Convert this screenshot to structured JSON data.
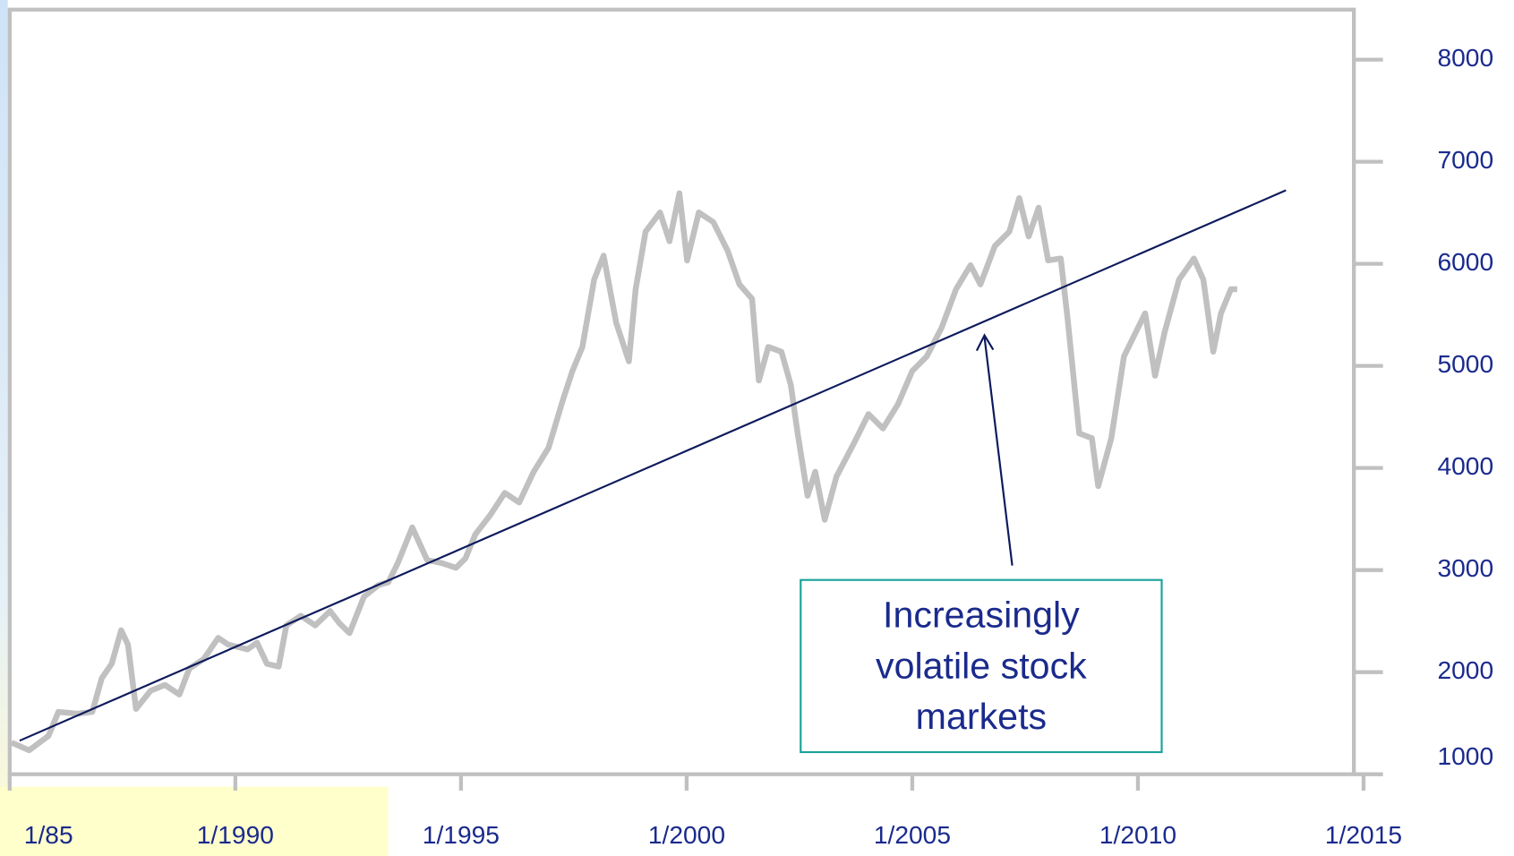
{
  "chart_data": {
    "type": "line",
    "x": [
      1985.04,
      1985.43,
      1985.86,
      1986.08,
      1986.5,
      1986.83,
      1987.04,
      1987.26,
      1987.47,
      1987.62,
      1987.8,
      1988.12,
      1988.44,
      1988.76,
      1988.98,
      1989.3,
      1989.62,
      1989.84,
      1990.27,
      1990.48,
      1990.7,
      1990.96,
      1991.13,
      1991.45,
      1991.77,
      1992.1,
      1992.31,
      1992.53,
      1992.85,
      1993.17,
      1993.39,
      1993.6,
      1993.92,
      1994.25,
      1994.57,
      1994.89,
      1995.1,
      1995.32,
      1995.65,
      1995.97,
      1996.29,
      1996.61,
      1996.94,
      1997.26,
      1997.47,
      1997.69,
      1997.95,
      1998.16,
      1998.44,
      1998.72,
      1998.87,
      1999.09,
      1999.41,
      1999.62,
      1999.84,
      2000.01,
      2000.27,
      2000.59,
      2000.91,
      2001.17,
      2001.45,
      2001.6,
      2001.81,
      2002.1,
      2002.31,
      2002.46,
      2002.68,
      2002.85,
      2003.06,
      2003.32,
      2003.71,
      2004.03,
      2004.35,
      2004.68,
      2005.0,
      2005.32,
      2005.65,
      2005.97,
      2006.29,
      2006.51,
      2006.83,
      2007.15,
      2007.37,
      2007.58,
      2007.8,
      2008.01,
      2008.29,
      2008.44,
      2008.7,
      2008.98,
      2009.12,
      2009.41,
      2009.69,
      2009.95,
      2010.16,
      2010.38,
      2010.59,
      2010.91,
      2011.24,
      2011.45,
      2011.67,
      2011.84,
      2012.06,
      2012.2
    ],
    "series": [
      {
        "color": "#c0c0c0",
        "values": [
          1310,
          1235,
          1376,
          1611,
          1593,
          1611,
          1941,
          2082,
          2411,
          2270,
          1640,
          1818,
          1875,
          1781,
          2035,
          2129,
          2336,
          2270,
          2223,
          2289,
          2082,
          2054,
          2458,
          2552,
          2458,
          2599,
          2477,
          2383,
          2740,
          2853,
          2881,
          3069,
          3418,
          3098,
          3069,
          3022,
          3116,
          3352,
          3540,
          3756,
          3662,
          3963,
          4198,
          4669,
          4951,
          5186,
          5845,
          6080,
          5421,
          5045,
          5751,
          6315,
          6503,
          6221,
          6691,
          6033,
          6503,
          6409,
          6127,
          5798,
          5657,
          4857,
          5186,
          5139,
          4810,
          4339,
          3728,
          3963,
          3493,
          3916,
          4245,
          4528,
          4387,
          4622,
          4951,
          5092,
          5374,
          5751,
          5986,
          5798,
          6174,
          6315,
          6644,
          6268,
          6550,
          6033,
          6052,
          5468,
          4339,
          4292,
          3822,
          4292,
          5092,
          5327,
          5515,
          4904,
          5327,
          5845,
          6052,
          5845,
          5139,
          5515,
          5751,
          5751
        ]
      }
    ],
    "trend": {
      "color": "#0d1a5c",
      "x": [
        1985.22,
        2013.28
      ],
      "values": [
        1329,
        6720
      ]
    },
    "annotation": {
      "lines": [
        "Increasingly",
        "volatile stock",
        "markets"
      ],
      "x": 2006.6,
      "y": 5300
    },
    "xlim": [
      1985,
      2015
    ],
    "xticks": [
      {
        "value": 1985,
        "label": "1/85"
      },
      {
        "value": 1990,
        "label": "1/1990"
      },
      {
        "value": 1995,
        "label": "1/1995"
      },
      {
        "value": 2000,
        "label": "1/2000"
      },
      {
        "value": 2005,
        "label": "1/2005"
      },
      {
        "value": 2010,
        "label": "1/2010"
      },
      {
        "value": 2015,
        "label": "1/2015"
      }
    ],
    "ylim": [
      1000,
      8490
    ],
    "yticks": [
      1000,
      2000,
      3000,
      4000,
      5000,
      6000,
      7000,
      8000
    ]
  }
}
